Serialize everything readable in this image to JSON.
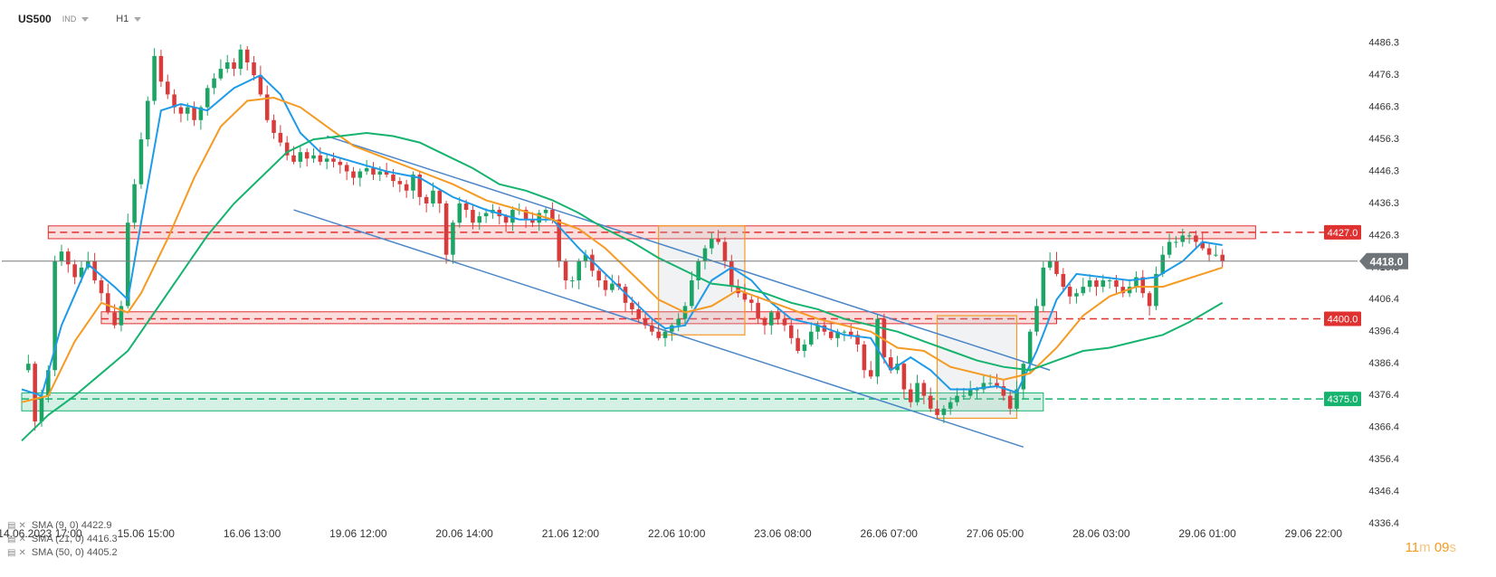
{
  "header": {
    "symbol": "US500",
    "type": "IND",
    "timeframe": "H1"
  },
  "indicators": [
    {
      "label": "SMA (9, 0)",
      "value": "4422.9",
      "color": "#1e9be8"
    },
    {
      "label": "SMA (21, 0)",
      "value": "4416.3",
      "color": "#f59a23"
    },
    {
      "label": "SMA (50, 0)",
      "value": "4405.2",
      "color": "#16b36f"
    }
  ],
  "timer": {
    "minutes": "11",
    "m": "m",
    "seconds": "09",
    "s": "s"
  },
  "chart_data": {
    "type": "candlestick",
    "y_range": [
      4336.4,
      4491.0
    ],
    "y_ticks": [
      "4486.3",
      "4476.3",
      "4466.3",
      "4456.3",
      "4446.3",
      "4436.3",
      "4426.3",
      "4416.3",
      "4406.4",
      "4396.4",
      "4386.4",
      "4376.4",
      "4366.4",
      "4356.4",
      "4346.4",
      "4336.4"
    ],
    "x_ticks": [
      "14.06.2023 17:00",
      "15.06 15:00",
      "16.06 13:00",
      "19.06 12:00",
      "20.06 14:00",
      "21.06 12:00",
      "22.06 10:00",
      "23.06 08:00",
      "26.06 07:00",
      "27.06 05:00",
      "28.06 03:00",
      "29.06 01:00",
      "29.06 22:00"
    ],
    "x_index_range": [
      0,
      200
    ],
    "x_tick_index": [
      0,
      16,
      32,
      48,
      64,
      80,
      96,
      112,
      128,
      144,
      160,
      176,
      192
    ],
    "current_price": {
      "label": "4418.0",
      "value": 4418.0
    },
    "levels": [
      {
        "label": "4427.0",
        "value": 4427.0,
        "color": "#e03131",
        "zone": [
          4425.0,
          4429.0
        ],
        "zone_x": [
          4,
          186
        ]
      },
      {
        "label": "4400.0",
        "value": 4400.0,
        "color": "#e03131",
        "zone": [
          4398.5,
          4402.2
        ],
        "zone_x": [
          12,
          156
        ]
      },
      {
        "label": "4375.0",
        "value": 4375.0,
        "color": "#16b36f",
        "zone": [
          4371.3,
          4376.9
        ],
        "zone_x": [
          0,
          154
        ]
      }
    ],
    "channel": [
      {
        "from": [
          46,
          4457.0
        ],
        "to": [
          155,
          4384.0
        ]
      },
      {
        "from": [
          41,
          4434.0
        ],
        "to": [
          151,
          4360.0
        ]
      }
    ],
    "boxes": [
      {
        "x": [
          96,
          109
        ],
        "y": [
          4395.0,
          4429.0
        ]
      },
      {
        "x": [
          138,
          150
        ],
        "y": [
          4369.0,
          4401.0
        ]
      }
    ],
    "sma9": [
      [
        0,
        4378
      ],
      [
        3,
        4376
      ],
      [
        6,
        4398
      ],
      [
        10,
        4417
      ],
      [
        14,
        4410
      ],
      [
        16,
        4406
      ],
      [
        18,
        4430
      ],
      [
        21,
        4465
      ],
      [
        24,
        4467
      ],
      [
        28,
        4465
      ],
      [
        32,
        4472
      ],
      [
        36,
        4476
      ],
      [
        39,
        4470
      ],
      [
        42,
        4458
      ],
      [
        45,
        4452
      ],
      [
        50,
        4449
      ],
      [
        55,
        4446
      ],
      [
        60,
        4444
      ],
      [
        65,
        4438
      ],
      [
        70,
        4434
      ],
      [
        75,
        4431
      ],
      [
        80,
        4431
      ],
      [
        84,
        4422
      ],
      [
        88,
        4414
      ],
      [
        92,
        4406
      ],
      [
        95,
        4400
      ],
      [
        97,
        4397
      ],
      [
        100,
        4398
      ],
      [
        104,
        4412
      ],
      [
        107,
        4416
      ],
      [
        110,
        4412
      ],
      [
        113,
        4405
      ],
      [
        116,
        4400
      ],
      [
        120,
        4398
      ],
      [
        124,
        4395
      ],
      [
        128,
        4394
      ],
      [
        131,
        4384
      ],
      [
        134,
        4388
      ],
      [
        137,
        4384
      ],
      [
        140,
        4378
      ],
      [
        143,
        4378
      ],
      [
        147,
        4379
      ],
      [
        150,
        4377
      ],
      [
        153,
        4390
      ],
      [
        156,
        4406
      ],
      [
        159,
        4414
      ],
      [
        163,
        4413
      ],
      [
        167,
        4412
      ],
      [
        171,
        4413
      ],
      [
        175,
        4418
      ],
      [
        178,
        4424
      ],
      [
        181,
        4423
      ]
    ],
    "sma21": [
      [
        0,
        4374
      ],
      [
        4,
        4376
      ],
      [
        8,
        4393
      ],
      [
        12,
        4405
      ],
      [
        16,
        4402
      ],
      [
        18,
        4408
      ],
      [
        22,
        4425
      ],
      [
        26,
        4444
      ],
      [
        30,
        4460
      ],
      [
        34,
        4468
      ],
      [
        38,
        4469
      ],
      [
        42,
        4466
      ],
      [
        46,
        4460
      ],
      [
        50,
        4454
      ],
      [
        55,
        4450
      ],
      [
        60,
        4446
      ],
      [
        65,
        4442
      ],
      [
        70,
        4437
      ],
      [
        75,
        4434
      ],
      [
        80,
        4431
      ],
      [
        84,
        4428
      ],
      [
        88,
        4422
      ],
      [
        92,
        4414
      ],
      [
        96,
        4406
      ],
      [
        100,
        4402
      ],
      [
        104,
        4404
      ],
      [
        108,
        4409
      ],
      [
        112,
        4406
      ],
      [
        116,
        4403
      ],
      [
        120,
        4400
      ],
      [
        124,
        4398
      ],
      [
        128,
        4396
      ],
      [
        132,
        4391
      ],
      [
        136,
        4390
      ],
      [
        140,
        4385
      ],
      [
        144,
        4383
      ],
      [
        148,
        4381
      ],
      [
        152,
        4383
      ],
      [
        156,
        4391
      ],
      [
        160,
        4401
      ],
      [
        164,
        4407
      ],
      [
        168,
        4410
      ],
      [
        172,
        4410
      ],
      [
        175,
        4412
      ],
      [
        178,
        4414
      ],
      [
        181,
        4416
      ]
    ],
    "sma50": [
      [
        0,
        4362
      ],
      [
        4,
        4370
      ],
      [
        8,
        4376
      ],
      [
        12,
        4383
      ],
      [
        16,
        4390
      ],
      [
        20,
        4402
      ],
      [
        24,
        4414
      ],
      [
        28,
        4426
      ],
      [
        32,
        4436
      ],
      [
        36,
        4444
      ],
      [
        40,
        4452
      ],
      [
        44,
        4456
      ],
      [
        48,
        4457
      ],
      [
        52,
        4458
      ],
      [
        56,
        4457
      ],
      [
        60,
        4455
      ],
      [
        64,
        4451
      ],
      [
        68,
        4447
      ],
      [
        72,
        4442
      ],
      [
        76,
        4440
      ],
      [
        80,
        4437
      ],
      [
        84,
        4433
      ],
      [
        88,
        4428
      ],
      [
        92,
        4424
      ],
      [
        96,
        4419
      ],
      [
        100,
        4415
      ],
      [
        104,
        4411
      ],
      [
        108,
        4410
      ],
      [
        112,
        4408
      ],
      [
        116,
        4405
      ],
      [
        120,
        4403
      ],
      [
        124,
        4400
      ],
      [
        128,
        4398
      ],
      [
        132,
        4396
      ],
      [
        136,
        4393
      ],
      [
        140,
        4390
      ],
      [
        144,
        4387
      ],
      [
        148,
        4385
      ],
      [
        152,
        4384
      ],
      [
        156,
        4387
      ],
      [
        160,
        4390
      ],
      [
        164,
        4391
      ],
      [
        168,
        4393
      ],
      [
        172,
        4395
      ],
      [
        176,
        4399
      ],
      [
        181,
        4405
      ]
    ],
    "price_path": [
      [
        0,
        4384
      ],
      [
        1,
        4386
      ],
      [
        2,
        4368
      ],
      [
        3,
        4376
      ],
      [
        4,
        4384
      ],
      [
        5,
        4418
      ],
      [
        6,
        4421
      ],
      [
        7,
        4417
      ],
      [
        8,
        4413
      ],
      [
        9,
        4416
      ],
      [
        10,
        4418
      ],
      [
        11,
        4412
      ],
      [
        12,
        4408
      ],
      [
        13,
        4402
      ],
      [
        14,
        4398
      ],
      [
        15,
        4404
      ],
      [
        16,
        4430
      ],
      [
        17,
        4442
      ],
      [
        18,
        4456
      ],
      [
        19,
        4468
      ],
      [
        20,
        4482
      ],
      [
        21,
        4474
      ],
      [
        22,
        4470
      ],
      [
        23,
        4466
      ],
      [
        24,
        4464
      ],
      [
        25,
        4466
      ],
      [
        26,
        4462
      ],
      [
        27,
        4466
      ],
      [
        28,
        4472
      ],
      [
        29,
        4475
      ],
      [
        30,
        4478
      ],
      [
        31,
        4480
      ],
      [
        32,
        4478
      ],
      [
        33,
        4484
      ],
      [
        34,
        4480
      ],
      [
        35,
        4476
      ],
      [
        36,
        4470
      ],
      [
        37,
        4462
      ],
      [
        38,
        4458
      ],
      [
        39,
        4455
      ],
      [
        40,
        4451
      ],
      [
        41,
        4449
      ],
      [
        42,
        4452
      ],
      [
        43,
        4450
      ],
      [
        44,
        4451
      ],
      [
        45,
        4449
      ],
      [
        46,
        4450
      ],
      [
        47,
        4449
      ],
      [
        48,
        4448
      ],
      [
        49,
        4446
      ],
      [
        50,
        4444
      ],
      [
        51,
        4446
      ],
      [
        52,
        4447
      ],
      [
        53,
        4445
      ],
      [
        54,
        4446
      ],
      [
        55,
        4445
      ],
      [
        56,
        4443
      ],
      [
        57,
        4442
      ],
      [
        58,
        4440
      ],
      [
        59,
        4445
      ],
      [
        60,
        4438
      ],
      [
        61,
        4436
      ],
      [
        62,
        4440
      ],
      [
        63,
        4436
      ],
      [
        64,
        4420
      ],
      [
        65,
        4430
      ],
      [
        66,
        4436
      ],
      [
        67,
        4434
      ],
      [
        68,
        4430
      ],
      [
        69,
        4432
      ],
      [
        70,
        4433
      ],
      [
        71,
        4434
      ],
      [
        72,
        4432
      ],
      [
        73,
        4430
      ],
      [
        74,
        4434
      ],
      [
        75,
        4434
      ],
      [
        76,
        4431
      ],
      [
        77,
        4430
      ],
      [
        78,
        4433
      ],
      [
        79,
        4434
      ],
      [
        80,
        4431
      ],
      [
        81,
        4418
      ],
      [
        82,
        4412
      ],
      [
        83,
        4412
      ],
      [
        84,
        4418
      ],
      [
        85,
        4420
      ],
      [
        86,
        4415
      ],
      [
        87,
        4412
      ],
      [
        88,
        4409
      ],
      [
        89,
        4411
      ],
      [
        90,
        4410
      ],
      [
        91,
        4405
      ],
      [
        92,
        4403
      ],
      [
        93,
        4400
      ],
      [
        94,
        4398
      ],
      [
        95,
        4396
      ],
      [
        96,
        4394
      ],
      [
        97,
        4396
      ],
      [
        98,
        4398
      ],
      [
        99,
        4400
      ],
      [
        100,
        4404
      ],
      [
        101,
        4412
      ],
      [
        102,
        4418
      ],
      [
        103,
        4422
      ],
      [
        104,
        4425
      ],
      [
        105,
        4424
      ],
      [
        106,
        4418
      ],
      [
        107,
        4410
      ],
      [
        108,
        4408
      ],
      [
        109,
        4406
      ],
      [
        110,
        4405
      ],
      [
        111,
        4400
      ],
      [
        112,
        4398
      ],
      [
        113,
        4402
      ],
      [
        114,
        4400
      ],
      [
        115,
        4398
      ],
      [
        116,
        4394
      ],
      [
        117,
        4390
      ],
      [
        118,
        4392
      ],
      [
        119,
        4396
      ],
      [
        120,
        4398
      ],
      [
        121,
        4396
      ],
      [
        122,
        4394
      ],
      [
        123,
        4396
      ],
      [
        124,
        4396
      ],
      [
        125,
        4395
      ],
      [
        126,
        4392
      ],
      [
        127,
        4384
      ],
      [
        128,
        4382
      ],
      [
        129,
        4400
      ],
      [
        130,
        4388
      ],
      [
        131,
        4384
      ],
      [
        132,
        4386
      ],
      [
        133,
        4378
      ],
      [
        134,
        4374
      ],
      [
        135,
        4380
      ],
      [
        136,
        4376
      ],
      [
        137,
        4372
      ],
      [
        138,
        4370
      ],
      [
        139,
        4372
      ],
      [
        140,
        4374
      ],
      [
        141,
        4376
      ],
      [
        142,
        4376
      ],
      [
        143,
        4378
      ],
      [
        144,
        4378
      ],
      [
        145,
        4380
      ],
      [
        146,
        4380
      ],
      [
        147,
        4379
      ],
      [
        148,
        4376
      ],
      [
        149,
        4372
      ],
      [
        150,
        4378
      ],
      [
        151,
        4386
      ],
      [
        152,
        4396
      ],
      [
        153,
        4404
      ],
      [
        154,
        4416
      ],
      [
        155,
        4418
      ],
      [
        156,
        4414
      ],
      [
        157,
        4410
      ],
      [
        158,
        4407
      ],
      [
        159,
        4408
      ],
      [
        160,
        4410
      ],
      [
        161,
        4412
      ],
      [
        162,
        4410
      ],
      [
        163,
        4412
      ],
      [
        164,
        4412
      ],
      [
        165,
        4410
      ],
      [
        166,
        4408
      ],
      [
        167,
        4410
      ],
      [
        168,
        4413
      ],
      [
        169,
        4408
      ],
      [
        170,
        4404
      ],
      [
        171,
        4414
      ],
      [
        172,
        4420
      ],
      [
        173,
        4424
      ],
      [
        174,
        4424
      ],
      [
        175,
        4426
      ],
      [
        176,
        4426
      ],
      [
        177,
        4424
      ],
      [
        178,
        4422
      ],
      [
        179,
        4420
      ],
      [
        180,
        4420
      ],
      [
        181,
        4418
      ]
    ],
    "colors": {
      "up": "#1ba463",
      "down": "#d93b3b",
      "grid_bg": "#ffffff",
      "axis_text": "#333333"
    }
  }
}
